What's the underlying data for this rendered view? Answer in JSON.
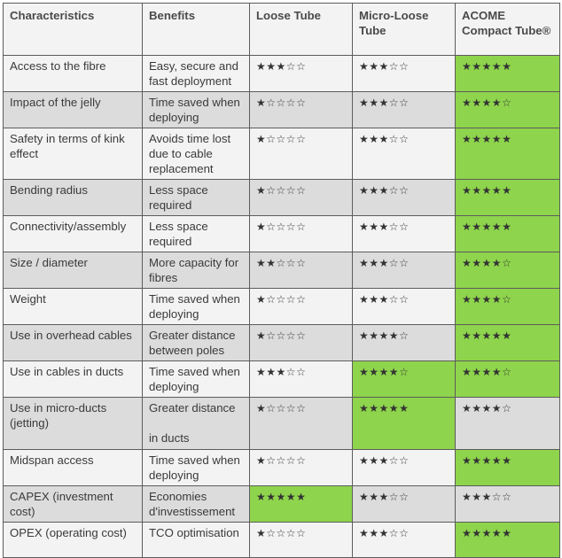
{
  "highlight_color": "#8ed44c",
  "headers": [
    "Characteristics",
    "Benefits",
    "Loose Tube",
    "Micro-Loose Tube",
    "ACOME Compact Tube®"
  ],
  "star_glyphs": {
    "filled": "★",
    "empty": "☆"
  },
  "rows": [
    {
      "characteristic": "Access to the fibre",
      "benefit": "Easy, secure and fast deployment",
      "ratings": [
        3,
        3,
        5
      ],
      "highlight": [
        false,
        false,
        true
      ]
    },
    {
      "characteristic": "Impact of the jelly",
      "benefit": "Time saved when deploying",
      "ratings": [
        1,
        3,
        4
      ],
      "highlight": [
        false,
        false,
        true
      ]
    },
    {
      "characteristic": "Safety in terms of kink effect",
      "benefit": "Avoids time lost due to cable replacement",
      "ratings": [
        1,
        3,
        5
      ],
      "highlight": [
        false,
        false,
        true
      ]
    },
    {
      "characteristic": "Bending radius",
      "benefit": "Less space required",
      "ratings": [
        1,
        3,
        5
      ],
      "highlight": [
        false,
        false,
        true
      ]
    },
    {
      "characteristic": "Connectivity/assembly",
      "benefit": "Less space required",
      "ratings": [
        1,
        3,
        5
      ],
      "highlight": [
        false,
        false,
        true
      ]
    },
    {
      "characteristic": "Size / diameter",
      "benefit": "More capacity for fibres",
      "ratings": [
        2,
        3,
        4
      ],
      "highlight": [
        false,
        false,
        true
      ]
    },
    {
      "characteristic": "Weight",
      "benefit": "Time saved when deploying",
      "ratings": [
        1,
        3,
        4
      ],
      "highlight": [
        false,
        false,
        true
      ]
    },
    {
      "characteristic": "Use in overhead cables",
      "benefit": "Greater distance between poles",
      "ratings": [
        1,
        4,
        5
      ],
      "highlight": [
        false,
        false,
        true
      ]
    },
    {
      "characteristic": "Use in cables in ducts",
      "benefit": "Time saved when deploying",
      "ratings": [
        3,
        4,
        4
      ],
      "highlight": [
        false,
        true,
        true
      ]
    },
    {
      "characteristic": "Use in micro-ducts (jetting)",
      "benefit": "Greater distance\n\nin ducts",
      "ratings": [
        1,
        5,
        4
      ],
      "highlight": [
        false,
        true,
        false
      ]
    },
    {
      "characteristic": "Midspan access",
      "benefit": "Time saved when deploying",
      "ratings": [
        1,
        3,
        5
      ],
      "highlight": [
        false,
        false,
        true
      ]
    },
    {
      "characteristic": "CAPEX (investment cost)",
      "benefit": "Economies d'investissement",
      "ratings": [
        5,
        3,
        3
      ],
      "highlight": [
        true,
        false,
        false
      ]
    },
    {
      "characteristic": "OPEX (operating cost)",
      "benefit": "TCO optimisation",
      "ratings": [
        1,
        3,
        5
      ],
      "highlight": [
        false,
        false,
        true
      ]
    }
  ]
}
